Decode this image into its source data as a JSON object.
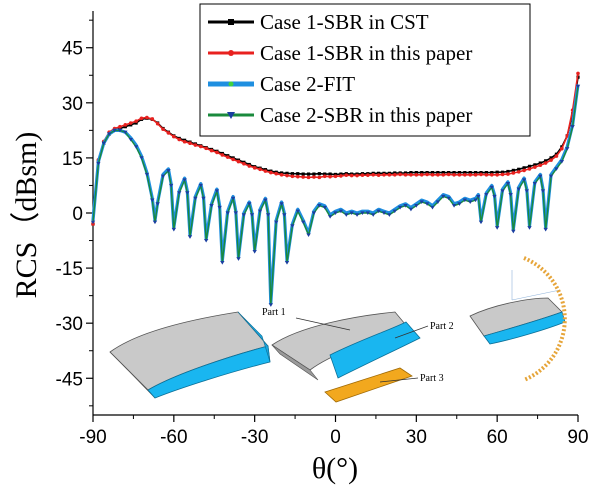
{
  "chart_data": {
    "type": "line",
    "xlabel": "θ(°)",
    "ylabel": "RCS（dBsm)",
    "xlim": [
      -90,
      90
    ],
    "ylim": [
      -55,
      55
    ],
    "xticks": [
      -90,
      -60,
      -30,
      0,
      30,
      60,
      90
    ],
    "yticks": [
      -45,
      -30,
      -15,
      0,
      15,
      30,
      45
    ],
    "x_tick_labels": [
      "-90",
      "-60",
      "-30",
      "0",
      "30",
      "60",
      "90"
    ],
    "y_tick_labels": [
      "-45",
      "-30",
      "-15",
      "0",
      "15",
      "30",
      "45"
    ],
    "grid": false,
    "legend_position": "top-right",
    "series": [
      {
        "name": "Case 1-SBR in CST",
        "color": "#000000",
        "marker": "square",
        "x": [
          -90,
          -88,
          -86,
          -84,
          -82,
          -80,
          -78,
          -76,
          -74,
          -72,
          -70,
          -68,
          -66,
          -64,
          -62,
          -60,
          -58,
          -56,
          -54,
          -52,
          -50,
          -48,
          -46,
          -44,
          -42,
          -40,
          -38,
          -36,
          -34,
          -32,
          -30,
          -28,
          -26,
          -24,
          -22,
          -20,
          -18,
          -16,
          -14,
          -12,
          -10,
          -8,
          -6,
          -4,
          -2,
          0,
          2,
          4,
          6,
          8,
          10,
          12,
          14,
          16,
          18,
          20,
          22,
          24,
          26,
          28,
          30,
          32,
          34,
          36,
          38,
          40,
          42,
          44,
          46,
          48,
          50,
          52,
          54,
          56,
          58,
          60,
          62,
          64,
          66,
          68,
          70,
          72,
          74,
          76,
          78,
          80,
          82,
          84,
          86,
          88,
          90
        ],
        "values": [
          -3,
          14,
          19,
          21.5,
          22.5,
          23,
          23.5,
          24,
          24.5,
          25.5,
          25.8,
          25.5,
          24.5,
          23,
          22,
          21,
          20.3,
          19.8,
          19.3,
          18.8,
          18.3,
          17.8,
          17.3,
          16.8,
          16.2,
          15.6,
          15.0,
          14.4,
          13.8,
          13.2,
          12.6,
          12.2,
          11.8,
          11.4,
          11.1,
          10.9,
          10.8,
          10.7,
          10.7,
          10.6,
          10.6,
          10.6,
          10.7,
          10.6,
          10.6,
          10.5,
          10.6,
          10.7,
          10.6,
          10.6,
          10.7,
          10.7,
          10.8,
          10.8,
          10.8,
          10.8,
          10.9,
          10.9,
          10.9,
          11.0,
          11.0,
          11.0,
          11.0,
          11.0,
          11.0,
          11.0,
          11.0,
          11.0,
          11.0,
          11.0,
          11.0,
          11.0,
          11.0,
          11.0,
          11.0,
          11.1,
          11.1,
          11.3,
          11.6,
          11.9,
          12.3,
          12.7,
          13.1,
          13.6,
          14.2,
          15.0,
          16.0,
          18.0,
          21.0,
          27.0,
          37.0
        ]
      },
      {
        "name": "Case 1-SBR in this paper",
        "color": "#e8211f",
        "marker": "dot",
        "x": [
          -90,
          -88,
          -86,
          -84,
          -82,
          -80,
          -78,
          -76,
          -74,
          -72,
          -70,
          -68,
          -66,
          -64,
          -62,
          -60,
          -58,
          -56,
          -54,
          -52,
          -50,
          -48,
          -46,
          -44,
          -42,
          -40,
          -38,
          -36,
          -34,
          -32,
          -30,
          -28,
          -26,
          -24,
          -22,
          -20,
          -18,
          -16,
          -14,
          -12,
          -10,
          -8,
          -6,
          -4,
          -2,
          0,
          2,
          4,
          6,
          8,
          10,
          12,
          14,
          16,
          18,
          20,
          22,
          24,
          26,
          28,
          30,
          32,
          34,
          36,
          38,
          40,
          42,
          44,
          46,
          48,
          50,
          52,
          54,
          56,
          58,
          60,
          62,
          64,
          66,
          68,
          70,
          72,
          74,
          76,
          78,
          80,
          82,
          84,
          86,
          88,
          90
        ],
        "values": [
          -3,
          14.5,
          19.5,
          22,
          23,
          23.5,
          24,
          24.5,
          25,
          25.8,
          26,
          25.6,
          24.3,
          22.8,
          21.8,
          20.8,
          20,
          19.4,
          19,
          18.5,
          18.1,
          17.6,
          17.0,
          16.5,
          15.8,
          15.2,
          14.6,
          14.0,
          13.4,
          12.8,
          12.3,
          11.9,
          11.4,
          11.0,
          10.7,
          10.4,
          10.2,
          10.0,
          9.9,
          9.8,
          9.7,
          9.8,
          9.7,
          10.0,
          9.9,
          10.0,
          10.1,
          10.3,
          10.2,
          10.2,
          10.3,
          10.3,
          10.4,
          10.3,
          10.4,
          10.4,
          10.4,
          10.5,
          10.4,
          10.4,
          10.4,
          10.4,
          10.5,
          10.4,
          10.4,
          10.4,
          10.5,
          10.4,
          10.4,
          10.4,
          10.4,
          10.4,
          10.5,
          10.4,
          10.4,
          10.4,
          10.5,
          10.6,
          10.9,
          11.2,
          11.6,
          12.0,
          12.5,
          13.0,
          13.6,
          14.4,
          15.5,
          17.5,
          21.0,
          28.0,
          38.0
        ]
      },
      {
        "name": "Case 2-FIT",
        "color": "#1f8fe0",
        "marker": "none",
        "x": [
          -90,
          -88,
          -86,
          -84,
          -82,
          -80,
          -78,
          -76,
          -74,
          -72,
          -70,
          -68,
          -67,
          -66,
          -64,
          -62,
          -61,
          -60,
          -58,
          -56,
          -55,
          -54,
          -52,
          -50,
          -49,
          -48,
          -46,
          -44,
          -43,
          -42,
          -40,
          -38,
          -37,
          -36,
          -34,
          -32,
          -31,
          -30,
          -28,
          -26,
          -25,
          -24,
          -22,
          -20,
          -19,
          -18,
          -16,
          -14,
          -12,
          -10,
          -8,
          -6,
          -4,
          -2,
          0,
          2,
          4,
          6,
          8,
          10,
          12,
          14,
          16,
          18,
          20,
          22,
          24,
          26,
          28,
          30,
          32,
          34,
          36,
          38,
          40,
          42,
          44,
          46,
          48,
          50,
          52,
          53,
          54,
          56,
          58,
          59,
          60,
          62,
          64,
          65,
          66,
          68,
          70,
          71,
          72,
          74,
          76,
          77,
          78,
          80,
          82,
          84,
          86,
          88,
          90
        ],
        "values": [
          -2,
          14,
          19,
          21.5,
          22.5,
          22.5,
          22,
          20.5,
          18.5,
          15.5,
          11.0,
          4.0,
          -2.0,
          3.0,
          10.5,
          12.0,
          8.0,
          -4.0,
          6.0,
          9.5,
          6.0,
          -6.0,
          4.5,
          8.0,
          4.5,
          -7.0,
          2.5,
          6.5,
          2.0,
          -13.0,
          0.5,
          4.5,
          0.5,
          -12.0,
          0.0,
          3.0,
          0.0,
          -10.0,
          1.0,
          4.0,
          0.0,
          -24.5,
          -2.0,
          3.0,
          0.0,
          -13.0,
          -3.0,
          1.0,
          -2.0,
          -5.5,
          0.5,
          2.5,
          2.0,
          -0.5,
          0.5,
          1.0,
          0.0,
          0.5,
          0.0,
          0.5,
          0.5,
          0.0,
          1.0,
          0.5,
          0.0,
          1.0,
          2.0,
          2.5,
          1.5,
          2.5,
          3.5,
          3.0,
          2.0,
          3.5,
          5.0,
          4.5,
          2.5,
          3.0,
          4.0,
          3.5,
          4.0,
          5.0,
          -2.0,
          5.5,
          7.5,
          5.0,
          -3.5,
          6.5,
          8.5,
          5.5,
          -4.5,
          7.0,
          9.5,
          6.5,
          -3.5,
          8.5,
          10.5,
          6.5,
          -4.0,
          10.5,
          12.5,
          14.5,
          18.0,
          24.0,
          35.0
        ]
      },
      {
        "name": "Case 2-SBR in this paper",
        "color": "#1a8a3c",
        "marker": "triangle-down",
        "x": [
          -90,
          -88,
          -86,
          -84,
          -82,
          -80,
          -78,
          -76,
          -74,
          -72,
          -70,
          -68,
          -67,
          -66,
          -64,
          -62,
          -61,
          -60,
          -58,
          -56,
          -55,
          -54,
          -52,
          -50,
          -49,
          -48,
          -46,
          -44,
          -43,
          -42,
          -40,
          -38,
          -37,
          -36,
          -34,
          -32,
          -31,
          -30,
          -28,
          -26,
          -25,
          -24,
          -22,
          -20,
          -19,
          -18,
          -16,
          -14,
          -12,
          -10,
          -8,
          -6,
          -4,
          -2,
          0,
          2,
          4,
          6,
          8,
          10,
          12,
          14,
          16,
          18,
          20,
          22,
          24,
          26,
          28,
          30,
          32,
          34,
          36,
          38,
          40,
          42,
          44,
          46,
          48,
          50,
          52,
          53,
          54,
          56,
          58,
          59,
          60,
          62,
          64,
          65,
          66,
          68,
          70,
          71,
          72,
          74,
          76,
          77,
          78,
          80,
          82,
          84,
          86,
          88,
          90
        ],
        "values": [
          -2.5,
          13.5,
          19,
          21.5,
          22.5,
          22.5,
          22,
          20.0,
          18.0,
          15.0,
          10.5,
          3.5,
          -2.5,
          2.5,
          10.0,
          11.5,
          7.5,
          -4.5,
          5.5,
          9.0,
          5.5,
          -6.5,
          4.0,
          7.5,
          4.0,
          -7.5,
          2.0,
          6.0,
          1.5,
          -13.5,
          0.0,
          4.0,
          0.0,
          -12.5,
          -0.5,
          2.5,
          -0.5,
          -10.5,
          0.5,
          3.5,
          -0.5,
          -25.0,
          -2.5,
          2.5,
          -0.5,
          -13.5,
          -3.5,
          0.5,
          -2.5,
          -6.0,
          0.0,
          2.0,
          1.5,
          -1.0,
          0.0,
          0.5,
          -0.5,
          0.0,
          -0.5,
          0.0,
          0.0,
          -0.5,
          0.5,
          0.0,
          -0.5,
          0.5,
          1.5,
          2.0,
          1.0,
          2.0,
          3.0,
          2.5,
          1.5,
          3.0,
          4.5,
          4.0,
          2.0,
          2.5,
          3.5,
          3.0,
          3.5,
          4.5,
          -2.5,
          5.0,
          7.0,
          4.5,
          -4.0,
          6.0,
          8.0,
          5.0,
          -5.0,
          6.5,
          9.0,
          6.0,
          -4.0,
          8.0,
          10.0,
          6.0,
          -4.5,
          10.0,
          12.0,
          14.0,
          17.5,
          23.5,
          34.5
        ]
      }
    ],
    "inset_labels": [
      "Part 1",
      "Part 2",
      "Part 3"
    ]
  }
}
